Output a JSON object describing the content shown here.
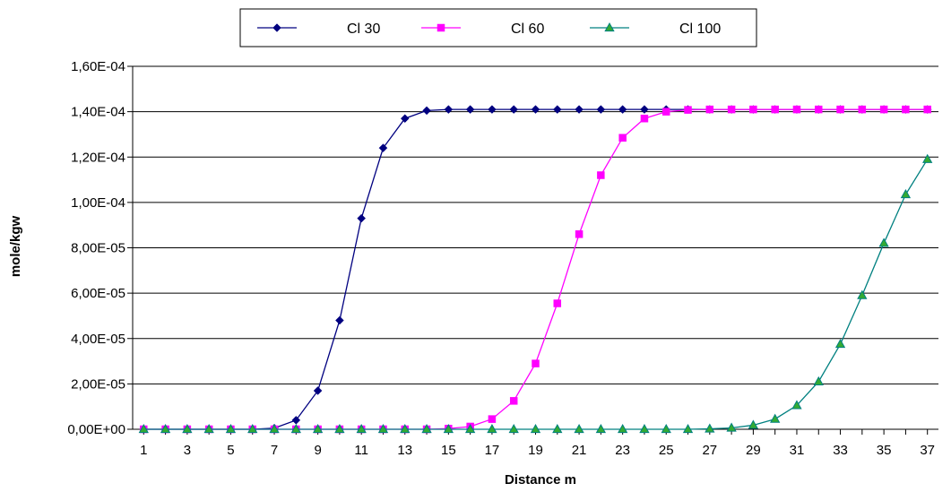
{
  "chart_data": {
    "type": "line",
    "xlabel": "Distance m",
    "ylabel": "mole/kgw",
    "x": [
      1,
      2,
      3,
      4,
      5,
      6,
      7,
      8,
      9,
      10,
      11,
      12,
      13,
      14,
      15,
      16,
      17,
      18,
      19,
      20,
      21,
      22,
      23,
      24,
      25,
      26,
      27,
      28,
      29,
      30,
      31,
      32,
      33,
      34,
      35,
      36,
      37
    ],
    "x_tick_labels": [
      "1",
      "3",
      "5",
      "7",
      "9",
      "11",
      "13",
      "15",
      "17",
      "19",
      "21",
      "23",
      "25",
      "27",
      "29",
      "31",
      "33",
      "35",
      "37"
    ],
    "ylim": [
      0,
      0.00016
    ],
    "y_ticks": [
      0,
      2e-05,
      4e-05,
      6e-05,
      8e-05,
      0.0001,
      0.00012,
      0.00014,
      0.00016
    ],
    "y_tick_labels": [
      "0,00E+00",
      "2,00E-05",
      "4,00E-05",
      "6,00E-05",
      "8,00E-05",
      "1,00E-04",
      "1,20E-04",
      "1,40E-04",
      "1,60E-04"
    ],
    "grid": "horizontal",
    "legend_position": "top",
    "series": [
      {
        "name": "Cl 30",
        "color": "#000080",
        "marker": "diamond",
        "values": [
          0,
          0,
          0,
          0,
          0,
          0,
          5e-07,
          4e-06,
          1.7e-05,
          4.8e-05,
          9.3e-05,
          0.000124,
          0.000137,
          0.0001405,
          0.000141,
          0.000141,
          0.000141,
          0.000141,
          0.000141,
          0.000141,
          0.000141,
          0.000141,
          0.000141,
          0.000141,
          0.000141,
          0.000141,
          0.000141,
          0.000141,
          0.000141,
          0.000141,
          0.000141,
          0.000141,
          0.000141,
          0.000141,
          0.000141,
          0.000141,
          0.000141
        ]
      },
      {
        "name": "Cl 60",
        "color": "#ff00ff",
        "marker": "square",
        "values": [
          0,
          0,
          0,
          0,
          0,
          0,
          0,
          0,
          0,
          0,
          0,
          0,
          0,
          0,
          3e-07,
          1.2e-06,
          4.5e-06,
          1.25e-05,
          2.9e-05,
          5.55e-05,
          8.6e-05,
          0.000112,
          0.0001285,
          0.000137,
          0.00014,
          0.0001408,
          0.000141,
          0.000141,
          0.000141,
          0.000141,
          0.000141,
          0.000141,
          0.000141,
          0.000141,
          0.000141,
          0.000141,
          0.000141
        ]
      },
      {
        "name": "Cl 100",
        "color": "#008080",
        "marker_fill": "#33aa33",
        "marker": "triangle",
        "values": [
          0,
          0,
          0,
          0,
          0,
          0,
          0,
          0,
          0,
          0,
          0,
          0,
          0,
          0,
          0,
          0,
          0,
          0,
          0,
          0,
          0,
          0,
          0,
          0,
          0,
          0,
          2e-07,
          6e-07,
          1.8e-06,
          4.5e-06,
          1.05e-05,
          2.1e-05,
          3.75e-05,
          5.9e-05,
          8.2e-05,
          0.0001035,
          0.000119
        ]
      }
    ]
  }
}
